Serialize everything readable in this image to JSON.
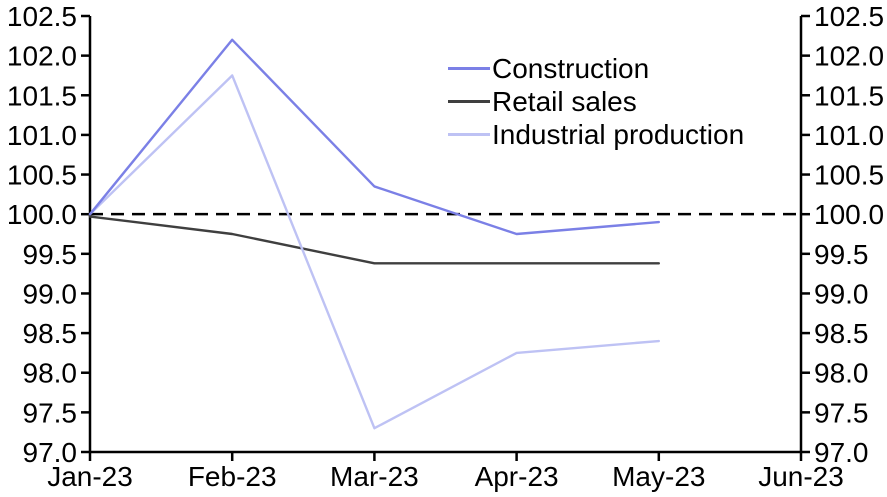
{
  "chart_data": {
    "type": "line",
    "title": "",
    "xlabel": "",
    "ylabel": "",
    "x_categories": [
      "Jan-23",
      "Feb-23",
      "Mar-23",
      "Apr-23",
      "May-23",
      "Jun-23"
    ],
    "ylim": [
      97.0,
      102.5
    ],
    "y_tick_step": 0.5,
    "y_tick_labels": [
      "97.0",
      "97.5",
      "98.0",
      "98.5",
      "99.0",
      "99.5",
      "100.0",
      "100.5",
      "101.0",
      "101.5",
      "102.0",
      "102.5"
    ],
    "grid": false,
    "mirrored_right_axis": true,
    "legend_position": "top-center-inside",
    "axis_color": "#000000",
    "series": [
      {
        "name": "Construction",
        "color": "#7b80e6",
        "x": [
          "Jan-23",
          "Feb-23",
          "Mar-23",
          "Apr-23",
          "May-23"
        ],
        "values": [
          100.0,
          102.2,
          100.35,
          99.75,
          99.9
        ]
      },
      {
        "name": "Retail sales",
        "color": "#3f3f3f",
        "x": [
          "Jan-23",
          "Feb-23",
          "Mar-23",
          "Apr-23",
          "May-23"
        ],
        "values": [
          99.97,
          99.75,
          99.38,
          99.38,
          99.38
        ]
      },
      {
        "name": "Industrial production",
        "color": "#bec2f4",
        "x": [
          "Jan-23",
          "Feb-23",
          "Mar-23",
          "Apr-23",
          "May-23"
        ],
        "values": [
          100.0,
          101.75,
          97.3,
          98.25,
          98.4
        ]
      }
    ],
    "reference_line": {
      "value": 100.0,
      "style": "dashed",
      "color": "#000000"
    }
  }
}
